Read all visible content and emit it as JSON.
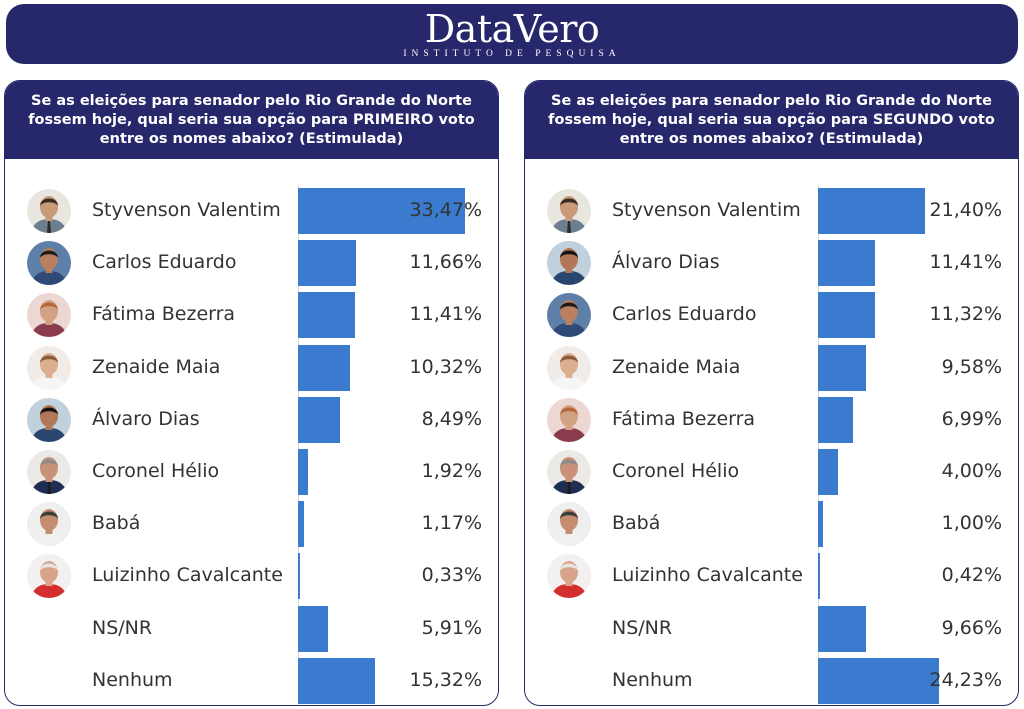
{
  "brand": {
    "name": "DataVero",
    "subtitle": "INSTITUTO DE PESQUISA"
  },
  "colors": {
    "header_bg": "#27276b",
    "bar": "#3a7bd0",
    "text": "#333333"
  },
  "chart_data": [
    {
      "type": "bar",
      "title": "Se as eleições para senador pelo Rio Grande do Norte fossem hoje, qual seria sua opção para PRIMEIRO voto entre os nomes abaixo? (Estimulada)",
      "orientation": "horizontal",
      "unit": "%",
      "xlim": [
        0,
        40
      ],
      "rows": [
        {
          "name": "Styvenson Valentim",
          "value": 33.47,
          "label": "33,47%",
          "avatar": "photo-styvenson"
        },
        {
          "name": "Carlos Eduardo",
          "value": 11.66,
          "label": "11,66%",
          "avatar": "photo-carlos"
        },
        {
          "name": "Fátima Bezerra",
          "value": 11.41,
          "label": "11,41%",
          "avatar": "photo-fatima"
        },
        {
          "name": "Zenaide Maia",
          "value": 10.32,
          "label": "10,32%",
          "avatar": "photo-zenaide"
        },
        {
          "name": "Álvaro Dias",
          "value": 8.49,
          "label": "8,49%",
          "avatar": "photo-alvaro"
        },
        {
          "name": "Coronel Hélio",
          "value": 1.92,
          "label": "1,92%",
          "avatar": "photo-helio"
        },
        {
          "name": "Babá",
          "value": 1.17,
          "label": "1,17%",
          "avatar": "photo-baba"
        },
        {
          "name": "Luizinho Cavalcante",
          "value": 0.33,
          "label": "0,33%",
          "avatar": "photo-luizinho"
        },
        {
          "name": "NS/NR",
          "value": 5.91,
          "label": "5,91%",
          "avatar": ""
        },
        {
          "name": "Nenhum",
          "value": 15.32,
          "label": "15,32%",
          "avatar": ""
        }
      ]
    },
    {
      "type": "bar",
      "title": "Se as eleições para senador pelo Rio Grande do Norte fossem hoje, qual seria sua opção para SEGUNDO voto entre os nomes abaixo? (Estimulada)",
      "orientation": "horizontal",
      "unit": "%",
      "xlim": [
        0,
        40
      ],
      "rows": [
        {
          "name": "Styvenson Valentim",
          "value": 21.4,
          "label": "21,40%",
          "avatar": "photo-styvenson"
        },
        {
          "name": "Álvaro Dias",
          "value": 11.41,
          "label": "11,41%",
          "avatar": "photo-alvaro"
        },
        {
          "name": "Carlos Eduardo",
          "value": 11.32,
          "label": "11,32%",
          "avatar": "photo-carlos"
        },
        {
          "name": "Zenaide Maia",
          "value": 9.58,
          "label": "9,58%",
          "avatar": "photo-zenaide"
        },
        {
          "name": "Fátima Bezerra",
          "value": 6.99,
          "label": "6,99%",
          "avatar": "photo-fatima"
        },
        {
          "name": "Coronel Hélio",
          "value": 4.0,
          "label": "4,00%",
          "avatar": "photo-helio"
        },
        {
          "name": "Babá",
          "value": 1.0,
          "label": "1,00%",
          "avatar": "photo-baba"
        },
        {
          "name": "Luizinho Cavalcante",
          "value": 0.42,
          "label": "0,42%",
          "avatar": "photo-luizinho"
        },
        {
          "name": "NS/NR",
          "value": 9.66,
          "label": "9,66%",
          "avatar": ""
        },
        {
          "name": "Nenhum",
          "value": 24.23,
          "label": "24,23%",
          "avatar": ""
        }
      ]
    }
  ]
}
